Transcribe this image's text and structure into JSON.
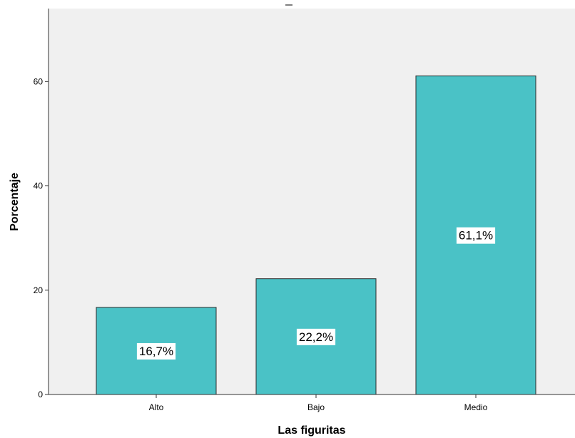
{
  "chart_data": {
    "type": "bar",
    "categories": [
      "Alto",
      "Bajo",
      "Medio"
    ],
    "values": [
      16.7,
      22.2,
      61.1
    ],
    "data_labels": [
      "16,7%",
      "22,2%",
      "61,1%"
    ],
    "xlabel": "Las figuritas",
    "ylabel": "Porcentaje",
    "ylim": [
      0,
      74
    ],
    "yticks": [
      0,
      20,
      40,
      60
    ],
    "ytick_labels": [
      "0",
      "20",
      "40",
      "60"
    ],
    "grid": false,
    "legend": "none",
    "colors": {
      "bar_fill": "#4AC2C6",
      "bar_stroke": "#2b2b2b",
      "plot_background": "#F0F0F0",
      "axis": "#333333"
    }
  }
}
